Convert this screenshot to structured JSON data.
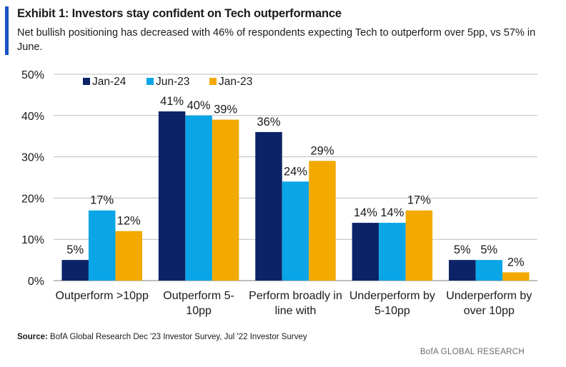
{
  "header": {
    "title": "Exhibit 1: Investors stay confident on Tech outperformance",
    "subtitle": "Net bullish positioning has decreased with 46% of respondents expecting Tech to outperform over 5pp, vs 57% in June."
  },
  "colors": {
    "accent": "#1a52c4",
    "gridline": "#bdbdbd",
    "axis": "#7f7f7f"
  },
  "chart_data": {
    "type": "bar",
    "title": "",
    "xlabel": "",
    "ylabel": "",
    "ylim": [
      0,
      50
    ],
    "yticks": [
      0,
      10,
      20,
      30,
      40,
      50
    ],
    "ytick_labels": [
      "0%",
      "10%",
      "20%",
      "30%",
      "40%",
      "50%"
    ],
    "grid": true,
    "legend_position": "top-left",
    "categories": [
      [
        "Outperform >10pp"
      ],
      [
        "Outperform 5-",
        "10pp"
      ],
      [
        "Perform broadly in",
        "line with"
      ],
      [
        "Underperform by",
        "5-10pp"
      ],
      [
        "Underperform by",
        "over 10pp"
      ]
    ],
    "series": [
      {
        "name": "Jan-24",
        "color": "#0c2368",
        "values": [
          5,
          41,
          36,
          14,
          5
        ],
        "labels": [
          "5%",
          "41%",
          "36%",
          "14%",
          "5%"
        ]
      },
      {
        "name": "Jun-23",
        "color": "#0aa5e6",
        "values": [
          17,
          40,
          24,
          14,
          5
        ],
        "labels": [
          "17%",
          "40%",
          "24%",
          "14%",
          "5%"
        ]
      },
      {
        "name": "Jan-23",
        "color": "#f2a900",
        "values": [
          12,
          39,
          29,
          17,
          2
        ],
        "labels": [
          "12%",
          "39%",
          "29%",
          "17%",
          "2%"
        ]
      }
    ]
  },
  "footer": {
    "source_label": "Source:",
    "source_text": "BofA Global Research Dec '23 Investor Survey, Jul '22 Investor Survey",
    "brand": "BofA GLOBAL RESEARCH"
  }
}
